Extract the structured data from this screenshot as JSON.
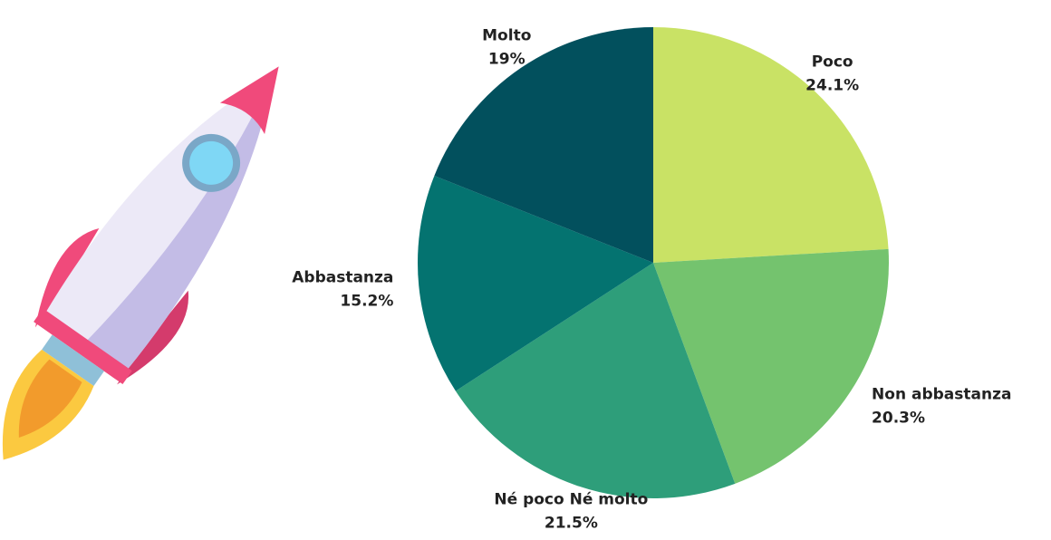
{
  "chart_data": {
    "type": "pie",
    "categories": [
      "Poco",
      "Non abbastanza",
      "Né poco Né molto",
      "Abbastanza",
      "Molto"
    ],
    "values": [
      24.1,
      20.3,
      21.5,
      15.2,
      19
    ],
    "value_labels": [
      "24.1%",
      "20.3%",
      "21.5%",
      "15.2%",
      "19%"
    ],
    "colors": [
      "#c9e265",
      "#74c36e",
      "#2e9e7a",
      "#047370",
      "#02505d"
    ]
  }
}
